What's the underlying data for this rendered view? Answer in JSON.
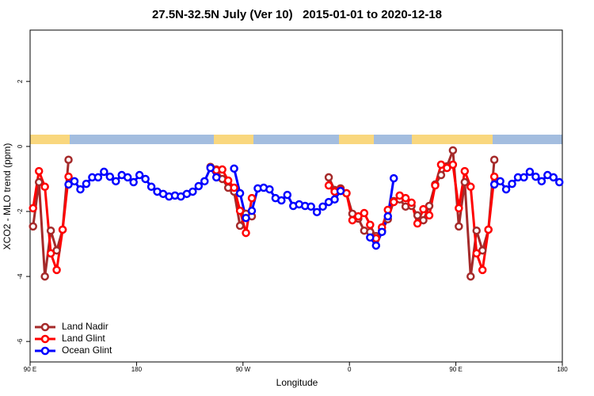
{
  "chart_data": {
    "type": "line",
    "title": "27.5N-32.5N July (Ver 10)   2015-01-01 to 2020-12-18",
    "x_label": "Longitude",
    "y_label": "XCO2 - MLO trend (ppm)",
    "x": [
      92.5,
      97.5,
      102.5,
      107.5,
      112.5,
      117.5,
      122.5,
      127.5,
      132.5,
      137.5,
      142.5,
      147.5,
      152.5,
      157.5,
      162.5,
      167.5,
      172.5,
      177.5,
      182.5,
      187.5,
      192.5,
      197.5,
      202.5,
      207.5,
      212.5,
      217.5,
      222.5,
      227.5,
      232.5,
      237.5,
      242.5,
      247.5,
      252.5,
      257.5,
      262.5,
      267.5,
      272.5,
      277.5,
      282.5,
      287.5,
      292.5,
      297.5,
      302.5,
      307.5,
      312.5,
      317.5,
      322.5,
      327.5,
      332.5,
      337.5,
      342.5,
      347.5,
      352.5,
      357.5,
      362.5,
      367.5,
      372.5,
      377.5,
      382.5,
      387.5,
      392.5,
      397.5,
      402.5,
      407.5,
      412.5,
      417.5,
      422.5,
      427.5,
      432.5,
      437.5,
      442.5,
      447.5,
      452.5,
      457.5,
      462.5,
      467.5,
      472.5,
      477.5,
      482.5,
      487.5,
      492.5,
      497.5,
      502.5,
      507.5,
      512.5,
      517.5,
      522.5,
      527.5,
      532.5,
      537.5
    ],
    "series": [
      {
        "name": "Land Nadir",
        "color": "#a52a2a",
        "values": [
          -2.46,
          -1.1,
          -4.0,
          -2.59,
          -3.2,
          -2.56,
          -0.41,
          null,
          null,
          null,
          null,
          null,
          null,
          null,
          null,
          null,
          null,
          null,
          null,
          null,
          null,
          null,
          null,
          null,
          null,
          null,
          null,
          null,
          null,
          null,
          -0.63,
          -0.71,
          -1.0,
          -1.27,
          -1.39,
          -2.44,
          -2.07,
          -2.15,
          null,
          null,
          null,
          null,
          null,
          null,
          null,
          null,
          null,
          null,
          null,
          null,
          -0.95,
          -1.34,
          -1.29,
          -1.44,
          -2.07,
          -2.22,
          -2.59,
          -2.63,
          -2.76,
          -2.59,
          -2.24,
          -1.68,
          -1.63,
          -1.85,
          -1.83,
          -2.12,
          -2.27,
          -1.83,
          -1.17,
          -0.88,
          -0.61,
          -0.12,
          -2.46,
          -1.1,
          -4.0,
          -2.59,
          -3.2,
          -2.56,
          -0.41,
          null,
          null,
          null,
          null,
          null,
          null,
          null,
          null,
          null,
          null,
          null
        ]
      },
      {
        "name": "Land Glint",
        "color": "#ff0000",
        "values": [
          -1.9,
          -0.76,
          -1.24,
          -3.29,
          -3.8,
          -2.56,
          -0.93,
          null,
          null,
          null,
          null,
          null,
          null,
          null,
          null,
          null,
          null,
          null,
          null,
          null,
          null,
          null,
          null,
          null,
          null,
          null,
          null,
          null,
          null,
          null,
          null,
          -0.73,
          -0.71,
          -1.05,
          -1.27,
          -1.98,
          -2.66,
          -1.59,
          null,
          null,
          null,
          null,
          null,
          null,
          null,
          null,
          null,
          null,
          null,
          null,
          -1.2,
          -1.39,
          -1.34,
          -1.44,
          -2.27,
          -2.15,
          -2.05,
          -2.41,
          -2.83,
          -2.49,
          -1.95,
          -1.71,
          -1.51,
          -1.59,
          -1.73,
          -2.37,
          -1.93,
          -2.12,
          -1.2,
          -0.56,
          -0.66,
          -0.56,
          -1.9,
          -0.76,
          -1.24,
          -3.29,
          -3.8,
          -2.56,
          -0.93,
          null,
          null,
          null,
          null,
          null,
          null,
          null,
          null,
          null,
          null,
          null
        ]
      },
      {
        "name": "Ocean Glint",
        "color": "#0000ff",
        "values": [
          null,
          null,
          null,
          null,
          null,
          null,
          -1.17,
          -1.07,
          -1.32,
          -1.15,
          -0.95,
          -0.95,
          -0.78,
          -0.93,
          -1.07,
          -0.88,
          -0.95,
          -1.1,
          -0.88,
          -1.0,
          -1.24,
          -1.39,
          -1.46,
          -1.54,
          -1.51,
          -1.54,
          -1.46,
          -1.39,
          -1.22,
          -1.07,
          -0.66,
          -0.95,
          null,
          null,
          -0.68,
          -1.44,
          -2.2,
          -1.98,
          -1.29,
          -1.27,
          -1.32,
          -1.59,
          -1.66,
          -1.49,
          -1.83,
          -1.78,
          -1.83,
          -1.85,
          -2.02,
          -1.85,
          -1.71,
          -1.63,
          -1.37,
          null,
          null,
          null,
          null,
          -2.8,
          -3.05,
          -2.63,
          -2.15,
          -0.98,
          null,
          null,
          null,
          null,
          null,
          null,
          null,
          null,
          null,
          null,
          null,
          null,
          null,
          null,
          null,
          null,
          -1.17,
          -1.07,
          -1.32,
          -1.15,
          -0.95,
          -0.95,
          -0.78,
          -0.93,
          -1.07,
          -0.88,
          -0.95,
          -1.1
        ]
      }
    ],
    "xlim": [
      90,
      540
    ],
    "xticks": [
      {
        "value": 90,
        "label": "90 E"
      },
      180,
      {
        "value": 270,
        "label": "90 W"
      },
      {
        "value": 360,
        "label": "0"
      },
      {
        "value": 450,
        "label": "90 E"
      },
      {
        "value": 540,
        "label": "180"
      }
    ],
    "ylim": [
      -6.63,
      3.58
    ],
    "yticks": [
      2,
      0,
      -2,
      -4,
      -6
    ],
    "legend": "bottom-left"
  }
}
